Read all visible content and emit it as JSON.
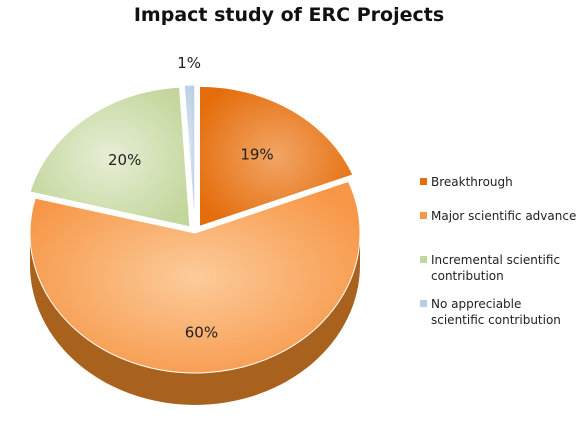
{
  "chart_data": {
    "type": "pie",
    "title": "Impact study of ERC  Projects",
    "categories": [
      "Breakthrough",
      "Major scientific advance",
      "Incremental scientific contribution",
      "No appreciable scientific contribution"
    ],
    "values": [
      19,
      60,
      20,
      1
    ],
    "labels": [
      "19%",
      "60%",
      "20%",
      "1%"
    ],
    "colors": [
      "#e46c0a",
      "#f79646",
      "#c3d69b",
      "#b9cde5"
    ],
    "exploded": [
      true,
      false,
      true,
      true
    ],
    "three_d": true,
    "legend_position": "right"
  }
}
